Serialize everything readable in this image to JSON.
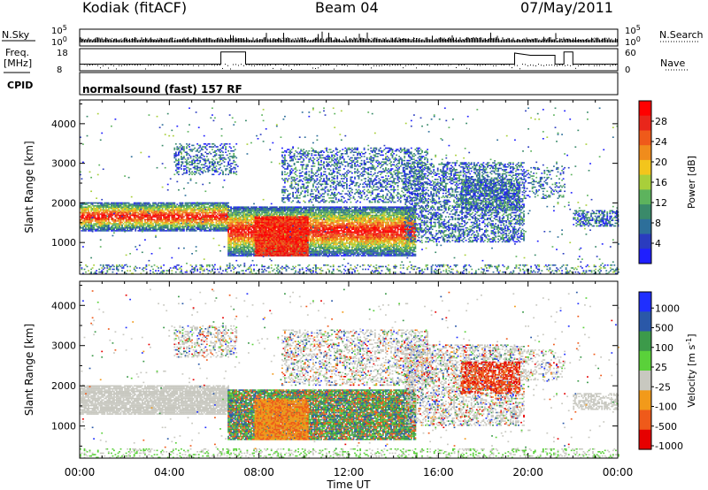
{
  "header": {
    "radar": "Kodiak (fitACF)",
    "beam": "Beam 04",
    "date": "07/May/2011"
  },
  "left_labels": {
    "nsky": "N.Sky",
    "freq": "Freq.",
    "freq_unit": "[MHz]",
    "cpid": "CPID"
  },
  "right_labels": {
    "nsearch": "N.Search",
    "nave": "Nave"
  },
  "mode_text": "normalsound (fast) 157 RF",
  "colors": {
    "power": [
      "#1f1fff",
      "#2a3cbf",
      "#2d6f9a",
      "#3a8a6a",
      "#5db35d",
      "#a9cf3a",
      "#f3c51c",
      "#f08c1c",
      "#ef5a1a",
      "#e9261b",
      "#ff0000"
    ],
    "velocity": [
      "#e60000",
      "#ef5a1a",
      "#f29a1a",
      "#c8c8c0",
      "#5ad13a",
      "#3c9a4a",
      "#2a58a8",
      "#1f2fff"
    ]
  },
  "chart_data": [
    {
      "type": "line",
      "name": "noise",
      "x_range": [
        "00:00",
        "24:00"
      ],
      "left_ticks": [
        "10^5",
        "10^0"
      ],
      "right_ticks": [
        "10^5",
        "10^0"
      ],
      "left_label": "N.Sky",
      "right_label": "N.Search"
    },
    {
      "type": "line",
      "name": "frequency-nave",
      "left_ticks": [
        18,
        8
      ],
      "right_ticks": [
        60,
        0
      ],
      "left_label": "Freq. [MHz]",
      "right_label": "Nave",
      "freq_steps": [
        {
          "x": 0,
          "y": 11
        },
        {
          "x": 6.3,
          "y": 11
        },
        {
          "x": 6.3,
          "y": 16.5
        },
        {
          "x": 7.4,
          "y": 16.5
        },
        {
          "x": 7.4,
          "y": 11
        },
        {
          "x": 19.4,
          "y": 11
        },
        {
          "x": 19.4,
          "y": 16
        },
        {
          "x": 20.1,
          "y": 15
        },
        {
          "x": 21.2,
          "y": 15
        },
        {
          "x": 21.2,
          "y": 11
        },
        {
          "x": 21.6,
          "y": 11
        },
        {
          "x": 21.6,
          "y": 16.5
        },
        {
          "x": 22.0,
          "y": 16.5
        },
        {
          "x": 22.0,
          "y": 11
        },
        {
          "x": 24,
          "y": 11
        }
      ]
    },
    {
      "type": "heatmap",
      "name": "power",
      "xlabel": "Time UT",
      "ylabel": "Slant Range [km]",
      "ylim": [
        200,
        4600
      ],
      "yticks": [
        1000,
        2000,
        3000,
        4000
      ],
      "xticks": [
        "00:00",
        "04:00",
        "08:00",
        "12:00",
        "16:00",
        "20:00",
        "00:00"
      ],
      "colorbar_label": "Power [dB]",
      "colorbar_ticks": [
        28,
        24,
        20,
        16,
        12,
        8,
        4
      ]
    },
    {
      "type": "heatmap",
      "name": "velocity",
      "xlabel": "Time UT",
      "ylabel": "Slant Range [km]",
      "ylim": [
        200,
        4600
      ],
      "yticks": [
        1000,
        2000,
        3000,
        4000
      ],
      "xticks": [
        "00:00",
        "04:00",
        "08:00",
        "12:00",
        "16:00",
        "20:00",
        "00:00"
      ],
      "colorbar_label": "Velocity [m s^-1]",
      "colorbar_ticks": [
        1000,
        500,
        100,
        25,
        -25,
        -100,
        -500,
        -1000
      ]
    }
  ]
}
